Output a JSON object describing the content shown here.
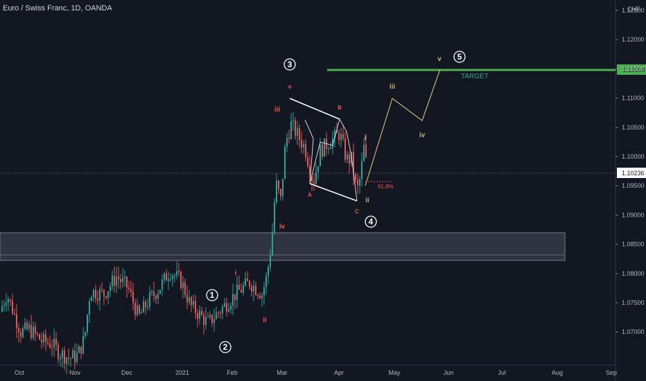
{
  "chart_data": {
    "type": "candlestick",
    "title": "Euro / Swiss Franc, 1D, OANDA",
    "currency": "CHF",
    "current_price": "1.10236",
    "y_ticks": [
      "1.12500",
      "1.12000",
      "1.11500",
      "1.11000",
      "1.10500",
      "1.10000",
      "1.09500",
      "1.09000",
      "1.08500",
      "1.08000",
      "1.07500",
      "1.07000"
    ],
    "x_ticks": [
      "Oct",
      "Nov",
      "Dec",
      "2021",
      "Feb",
      "Mar",
      "Apr",
      "May",
      "Jun",
      "Jul",
      "Aug",
      "Sep"
    ],
    "ylim": [
      1.0695,
      1.1295
    ],
    "target": {
      "label": "TARGET",
      "price_label": "1.12000",
      "price": 1.12
    },
    "zone": {
      "low": 1.0876,
      "high": 1.0922
    },
    "wave_labels_circled": [
      "1",
      "2",
      "3",
      "4",
      "5"
    ],
    "wave_labels_small": [
      "i",
      "ii",
      "iii",
      "iv",
      "v"
    ],
    "triangle_labels": [
      "A",
      "B",
      "C"
    ],
    "fib_label": "61.8%",
    "colors": {
      "up": "#26a69a",
      "down": "#ef5350",
      "target": "#4caf50",
      "zone": "#363a45",
      "projection": "#c8b478",
      "background": "#131722"
    }
  }
}
